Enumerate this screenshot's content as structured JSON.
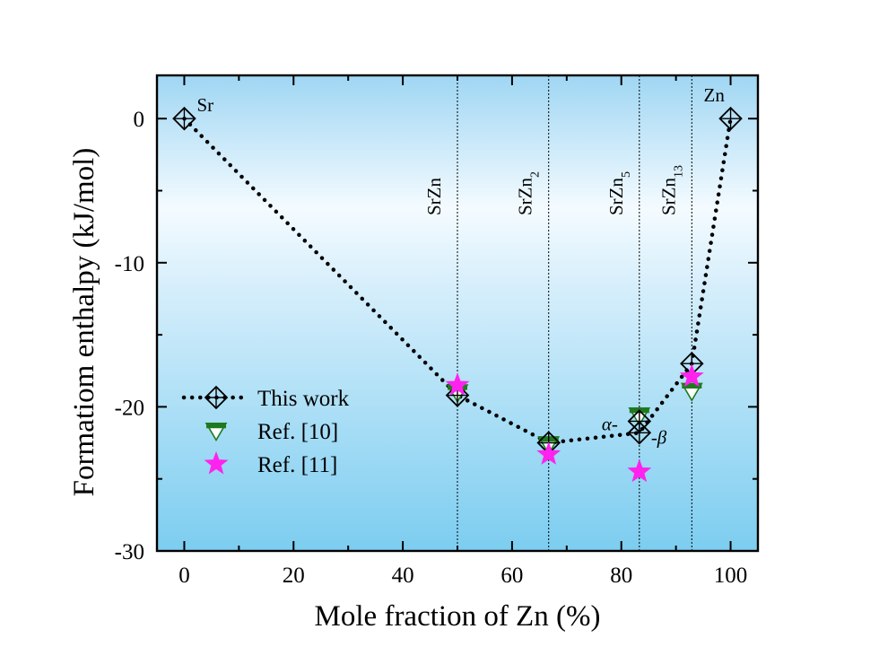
{
  "chart_data": {
    "type": "scatter",
    "xlabel": "Mole fraction of Zn (%)",
    "ylabel": "Formatiom enthalpy (kJ/mol)",
    "xlim": [
      -5,
      105
    ],
    "ylim": [
      -30,
      3
    ],
    "x_ticks": [
      0,
      20,
      40,
      60,
      80,
      100
    ],
    "y_ticks": [
      0,
      -10,
      -20,
      -30
    ],
    "background": "gradient-sky-blue",
    "phase_lines": [
      {
        "x": 50,
        "label": "SrZn",
        "sub": ""
      },
      {
        "x": 66.7,
        "label": "SrZn",
        "sub": "2"
      },
      {
        "x": 83.3,
        "label": "SrZn",
        "sub": "5"
      },
      {
        "x": 92.9,
        "label": "SrZn",
        "sub": "13"
      }
    ],
    "series": [
      {
        "name": "This work",
        "marker": "diamond-cross",
        "line": "dotted",
        "color": "#000000",
        "points": [
          {
            "x": 0,
            "y": 0
          },
          {
            "x": 50,
            "y": -19.2
          },
          {
            "x": 66.7,
            "y": -22.5
          },
          {
            "x": 83.3,
            "y": -21.8
          },
          {
            "x": 92.9,
            "y": -17.0
          },
          {
            "x": 100,
            "y": 0
          }
        ],
        "extra_points": [
          {
            "x": 83.3,
            "y": -21.0
          }
        ]
      },
      {
        "name": "Ref. [10]",
        "marker": "triangle-down",
        "color": "#1f7a1f",
        "points": [
          {
            "x": 50,
            "y": -19.0
          },
          {
            "x": 66.7,
            "y": -22.6
          },
          {
            "x": 83.3,
            "y": -20.6
          },
          {
            "x": 92.9,
            "y": -18.9
          }
        ]
      },
      {
        "name": "Ref. [11]",
        "marker": "star",
        "color": "#ff22ee",
        "points": [
          {
            "x": 50,
            "y": -18.5
          },
          {
            "x": 66.7,
            "y": -23.3
          },
          {
            "x": 83.3,
            "y": -24.5
          },
          {
            "x": 92.9,
            "y": -17.9
          }
        ]
      }
    ],
    "annotations": [
      {
        "text": "Sr",
        "x": 0,
        "y": 0
      },
      {
        "text": "Zn",
        "x": 100,
        "y": 0
      },
      {
        "text": "α-",
        "x": 83.3,
        "y": -21.0
      },
      {
        "text": "-β",
        "x": 83.3,
        "y": -21.8
      }
    ],
    "legend": {
      "placement": "bottom-left",
      "entries": [
        "This work",
        "Ref. [10]",
        "Ref. [11]"
      ]
    }
  }
}
